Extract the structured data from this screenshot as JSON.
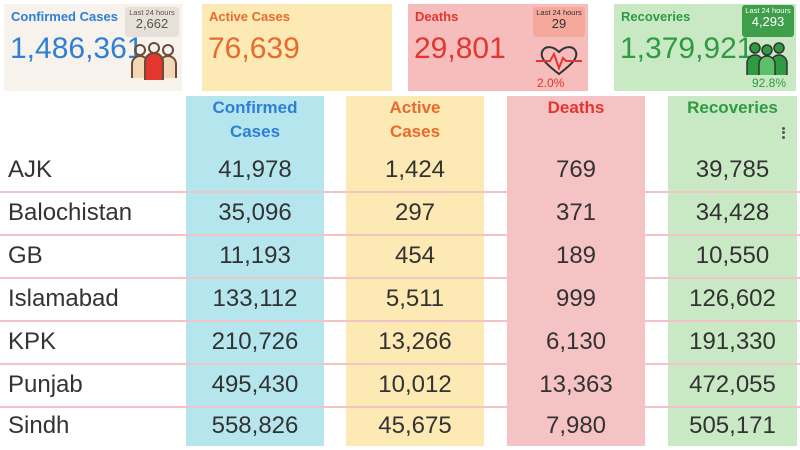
{
  "cards": {
    "confirmed": {
      "title": "Confirmed Cases",
      "value": "1,486,361",
      "last24_label": "Last 24 hours",
      "last24": "2,662",
      "icon": "group-people-icon"
    },
    "active": {
      "title": "Active Cases",
      "value": "76,639",
      "icon": "hospital-bed-icon"
    },
    "deaths": {
      "title": "Deaths",
      "value": "29,801",
      "last24_label": "Last 24 hours",
      "last24": "29",
      "percent": "2.0%",
      "icon": "heartbeat-icon"
    },
    "recoveries": {
      "title": "Recoveries",
      "value": "1,379,921",
      "last24_label": "Last 24 hours",
      "last24": "4,293",
      "percent": "92.8%",
      "icon": "recovered-people-icon"
    }
  },
  "table": {
    "headers": {
      "confirmed": [
        "Confirmed",
        "Cases"
      ],
      "active": [
        "Active",
        "Cases"
      ],
      "deaths": "Deaths",
      "recoveries": "Recoveries"
    },
    "rows": [
      {
        "name": "AJK",
        "confirmed": "41,978",
        "active": "1,424",
        "deaths": "769",
        "recoveries": "39,785"
      },
      {
        "name": "Balochistan",
        "confirmed": "35,096",
        "active": "297",
        "deaths": "371",
        "recoveries": "34,428"
      },
      {
        "name": "GB",
        "confirmed": "11,193",
        "active": "454",
        "deaths": "189",
        "recoveries": "10,550"
      },
      {
        "name": "Islamabad",
        "confirmed": "133,112",
        "active": "5,511",
        "deaths": "999",
        "recoveries": "126,602"
      },
      {
        "name": "KPK",
        "confirmed": "210,726",
        "active": "13,266",
        "deaths": "6,130",
        "recoveries": "191,330"
      },
      {
        "name": "Punjab",
        "confirmed": "495,430",
        "active": "10,012",
        "deaths": "13,363",
        "recoveries": "472,055"
      },
      {
        "name": "Sindh",
        "confirmed": "558,826",
        "active": "45,675",
        "deaths": "7,980",
        "recoveries": "505,171"
      }
    ]
  },
  "colors": {
    "confirmed": "#2f7fd6",
    "active": "#ea6a2c",
    "deaths": "#e2362f",
    "recoveries": "#2e9b43"
  }
}
